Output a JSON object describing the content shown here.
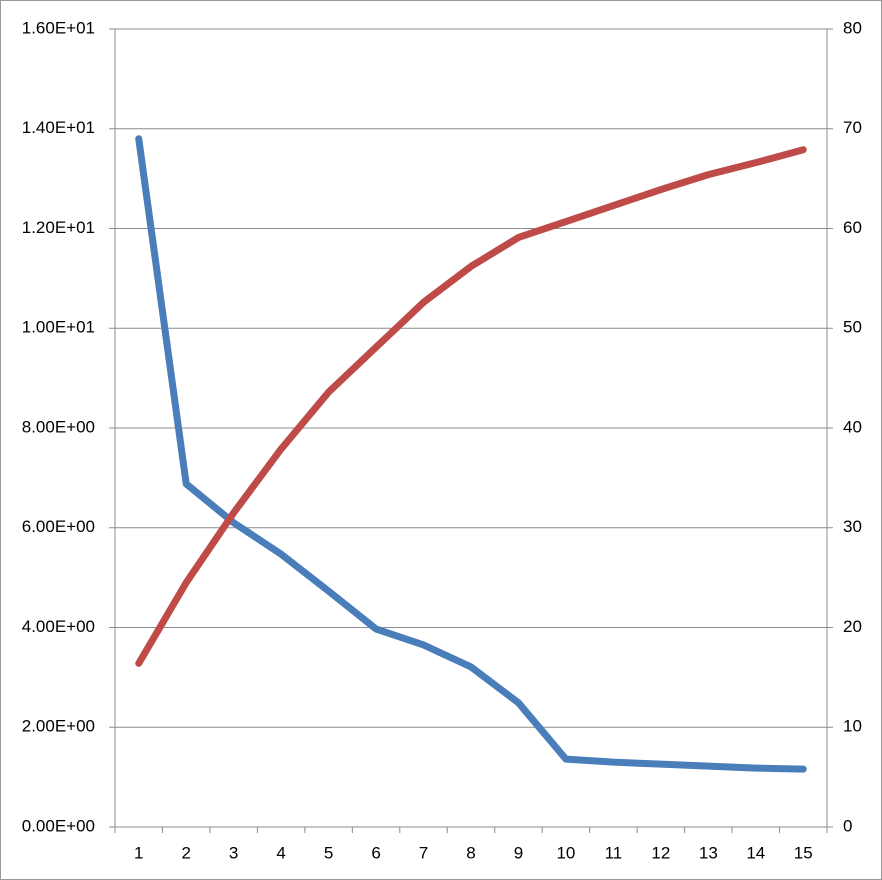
{
  "chart_data": {
    "type": "line",
    "categories": [
      "1",
      "2",
      "3",
      "4",
      "5",
      "6",
      "7",
      "8",
      "9",
      "10",
      "11",
      "12",
      "13",
      "14",
      "15"
    ],
    "series": [
      {
        "color": "#4a7ebb",
        "values": [
          13.8,
          6.88,
          6.1,
          5.47,
          4.73,
          3.97,
          3.65,
          3.21,
          2.49,
          1.36,
          1.3,
          1.26,
          1.22,
          1.18,
          1.16
        ]
      },
      {
        "color": "#be4b48",
        "axis": "y2",
        "values": [
          16.4,
          24.5,
          31.5,
          37.9,
          43.6,
          48.1,
          52.6,
          56.2,
          59.1,
          60.7,
          62.3,
          63.9,
          65.4,
          66.6,
          67.9
        ]
      }
    ],
    "ylim": [
      0,
      16
    ],
    "yticks": [
      {
        "value": 0,
        "label": "0.00E+00"
      },
      {
        "value": 2,
        "label": "2.00E+00"
      },
      {
        "value": 4,
        "label": "4.00E+00"
      },
      {
        "value": 6,
        "label": "6.00E+00"
      },
      {
        "value": 8,
        "label": "8.00E+00"
      },
      {
        "value": 10,
        "label": "1.00E+01"
      },
      {
        "value": 12,
        "label": "1.20E+01"
      },
      {
        "value": 14,
        "label": "1.40E+01"
      },
      {
        "value": 16,
        "label": "1.60E+01"
      }
    ],
    "y2lim": [
      0,
      80
    ],
    "y2ticks": [
      0,
      10,
      20,
      30,
      40,
      50,
      60,
      70,
      80
    ],
    "grid": true
  }
}
